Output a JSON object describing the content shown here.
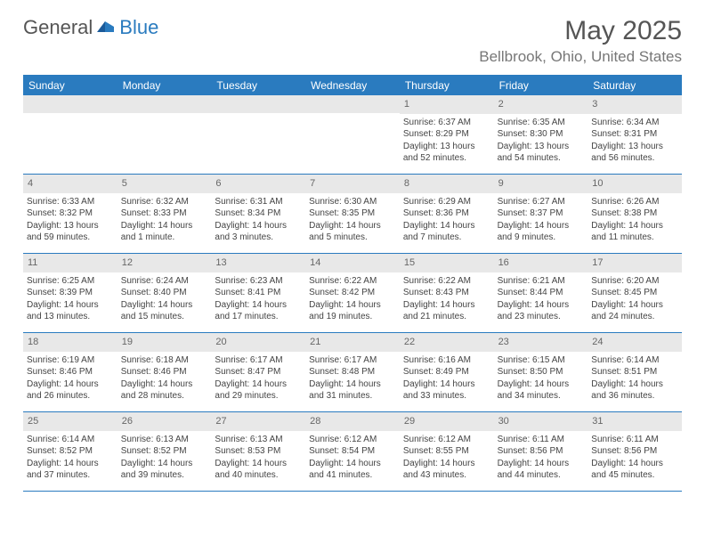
{
  "logo": {
    "text1": "General",
    "text2": "Blue"
  },
  "title": "May 2025",
  "location": "Bellbrook, Ohio, United States",
  "day_names": [
    "Sunday",
    "Monday",
    "Tuesday",
    "Wednesday",
    "Thursday",
    "Friday",
    "Saturday"
  ],
  "colors": {
    "header_bg": "#2a7bbf",
    "daynum_bg": "#e8e8e8",
    "text": "#444",
    "title": "#555",
    "location": "#777"
  },
  "weeks": [
    [
      null,
      null,
      null,
      null,
      {
        "num": "1",
        "sunrise": "6:37 AM",
        "sunset": "8:29 PM",
        "daylight": "13 hours and 52 minutes."
      },
      {
        "num": "2",
        "sunrise": "6:35 AM",
        "sunset": "8:30 PM",
        "daylight": "13 hours and 54 minutes."
      },
      {
        "num": "3",
        "sunrise": "6:34 AM",
        "sunset": "8:31 PM",
        "daylight": "13 hours and 56 minutes."
      }
    ],
    [
      {
        "num": "4",
        "sunrise": "6:33 AM",
        "sunset": "8:32 PM",
        "daylight": "13 hours and 59 minutes."
      },
      {
        "num": "5",
        "sunrise": "6:32 AM",
        "sunset": "8:33 PM",
        "daylight": "14 hours and 1 minute."
      },
      {
        "num": "6",
        "sunrise": "6:31 AM",
        "sunset": "8:34 PM",
        "daylight": "14 hours and 3 minutes."
      },
      {
        "num": "7",
        "sunrise": "6:30 AM",
        "sunset": "8:35 PM",
        "daylight": "14 hours and 5 minutes."
      },
      {
        "num": "8",
        "sunrise": "6:29 AM",
        "sunset": "8:36 PM",
        "daylight": "14 hours and 7 minutes."
      },
      {
        "num": "9",
        "sunrise": "6:27 AM",
        "sunset": "8:37 PM",
        "daylight": "14 hours and 9 minutes."
      },
      {
        "num": "10",
        "sunrise": "6:26 AM",
        "sunset": "8:38 PM",
        "daylight": "14 hours and 11 minutes."
      }
    ],
    [
      {
        "num": "11",
        "sunrise": "6:25 AM",
        "sunset": "8:39 PM",
        "daylight": "14 hours and 13 minutes."
      },
      {
        "num": "12",
        "sunrise": "6:24 AM",
        "sunset": "8:40 PM",
        "daylight": "14 hours and 15 minutes."
      },
      {
        "num": "13",
        "sunrise": "6:23 AM",
        "sunset": "8:41 PM",
        "daylight": "14 hours and 17 minutes."
      },
      {
        "num": "14",
        "sunrise": "6:22 AM",
        "sunset": "8:42 PM",
        "daylight": "14 hours and 19 minutes."
      },
      {
        "num": "15",
        "sunrise": "6:22 AM",
        "sunset": "8:43 PM",
        "daylight": "14 hours and 21 minutes."
      },
      {
        "num": "16",
        "sunrise": "6:21 AM",
        "sunset": "8:44 PM",
        "daylight": "14 hours and 23 minutes."
      },
      {
        "num": "17",
        "sunrise": "6:20 AM",
        "sunset": "8:45 PM",
        "daylight": "14 hours and 24 minutes."
      }
    ],
    [
      {
        "num": "18",
        "sunrise": "6:19 AM",
        "sunset": "8:46 PM",
        "daylight": "14 hours and 26 minutes."
      },
      {
        "num": "19",
        "sunrise": "6:18 AM",
        "sunset": "8:46 PM",
        "daylight": "14 hours and 28 minutes."
      },
      {
        "num": "20",
        "sunrise": "6:17 AM",
        "sunset": "8:47 PM",
        "daylight": "14 hours and 29 minutes."
      },
      {
        "num": "21",
        "sunrise": "6:17 AM",
        "sunset": "8:48 PM",
        "daylight": "14 hours and 31 minutes."
      },
      {
        "num": "22",
        "sunrise": "6:16 AM",
        "sunset": "8:49 PM",
        "daylight": "14 hours and 33 minutes."
      },
      {
        "num": "23",
        "sunrise": "6:15 AM",
        "sunset": "8:50 PM",
        "daylight": "14 hours and 34 minutes."
      },
      {
        "num": "24",
        "sunrise": "6:14 AM",
        "sunset": "8:51 PM",
        "daylight": "14 hours and 36 minutes."
      }
    ],
    [
      {
        "num": "25",
        "sunrise": "6:14 AM",
        "sunset": "8:52 PM",
        "daylight": "14 hours and 37 minutes."
      },
      {
        "num": "26",
        "sunrise": "6:13 AM",
        "sunset": "8:52 PM",
        "daylight": "14 hours and 39 minutes."
      },
      {
        "num": "27",
        "sunrise": "6:13 AM",
        "sunset": "8:53 PM",
        "daylight": "14 hours and 40 minutes."
      },
      {
        "num": "28",
        "sunrise": "6:12 AM",
        "sunset": "8:54 PM",
        "daylight": "14 hours and 41 minutes."
      },
      {
        "num": "29",
        "sunrise": "6:12 AM",
        "sunset": "8:55 PM",
        "daylight": "14 hours and 43 minutes."
      },
      {
        "num": "30",
        "sunrise": "6:11 AM",
        "sunset": "8:56 PM",
        "daylight": "14 hours and 44 minutes."
      },
      {
        "num": "31",
        "sunrise": "6:11 AM",
        "sunset": "8:56 PM",
        "daylight": "14 hours and 45 minutes."
      }
    ]
  ],
  "labels": {
    "sunrise_prefix": "Sunrise: ",
    "sunset_prefix": "Sunset: ",
    "daylight_prefix": "Daylight: "
  }
}
